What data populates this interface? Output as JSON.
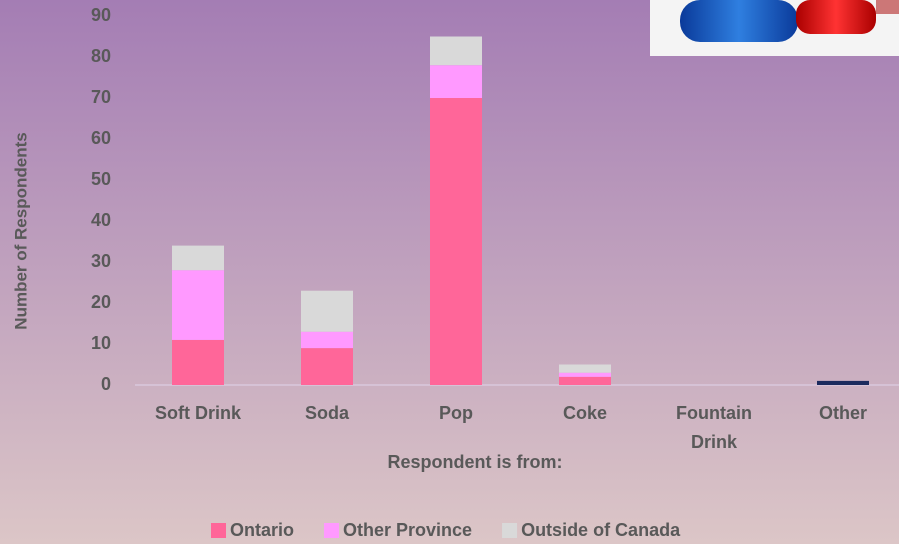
{
  "chart_data": {
    "type": "stacked_bar",
    "x_label": "Respondent is from:",
    "y_label": "Number of Respondents",
    "categories": [
      "Soft Drink",
      "Soda",
      "Pop",
      "Coke",
      "Fountain Drink",
      "Other"
    ],
    "series": [
      {
        "name": "Ontario",
        "color": "#ff6699",
        "colors": [
          "#ff6699",
          "#ff6699",
          "#ff6699",
          "#ff6699",
          "#ff6699",
          "#1b2a5e"
        ],
        "values": [
          11,
          9,
          70,
          2,
          0,
          1
        ]
      },
      {
        "name": "Other Province",
        "color": "#ff99ff",
        "values": [
          17,
          4,
          8,
          1,
          0,
          0
        ]
      },
      {
        "name": "Outside of Canada",
        "color": "#d9d9d9",
        "values": [
          6,
          10,
          7,
          2,
          0,
          0
        ]
      }
    ],
    "ylim": [
      0,
      90
    ],
    "yticks": [
      0,
      10,
      20,
      30,
      40,
      50,
      60,
      70,
      80,
      90
    ],
    "grid": false,
    "legend": "bottom"
  }
}
